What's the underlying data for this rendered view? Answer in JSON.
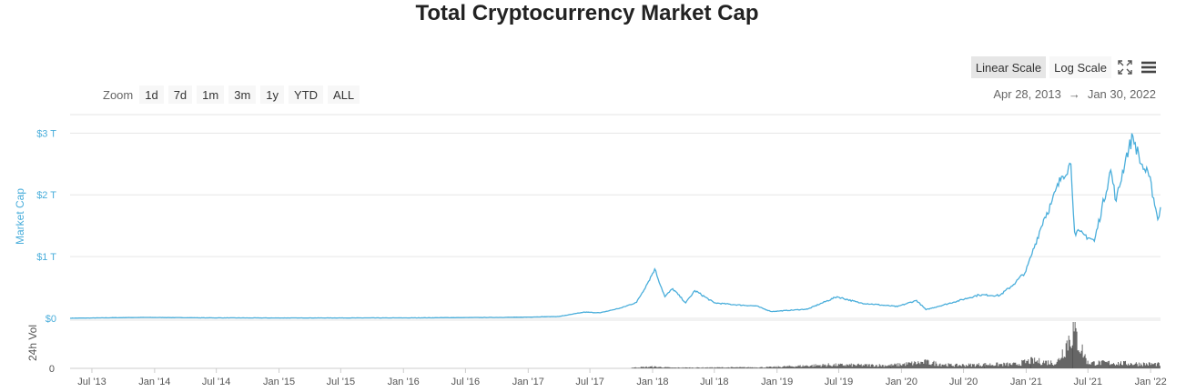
{
  "title": "Total Cryptocurrency Market Cap",
  "zoom": {
    "label": "Zoom",
    "buttons": [
      "1d",
      "7d",
      "1m",
      "3m",
      "1y",
      "YTD",
      "ALL"
    ]
  },
  "scale": {
    "linear": "Linear Scale",
    "log": "Log Scale",
    "active": "linear"
  },
  "range": {
    "from": "Apr 28, 2013",
    "arrow": "→",
    "to": "Jan 30, 2022"
  },
  "colors": {
    "line": "#4aaedb",
    "axis_label": "#4aaedb",
    "volume": "#555555",
    "grid": "#e6e6e6"
  },
  "chart_data": [
    {
      "type": "line",
      "ylabel": "Market Cap",
      "ytick_labels": [
        "$0",
        "$1 T",
        "$2 T",
        "$3 T"
      ],
      "yticks": [
        0,
        1,
        2,
        3
      ],
      "ylim": [
        0,
        3.3
      ],
      "xlim": [
        "2013-04-28",
        "2022-01-30"
      ],
      "x_tick_labels": [
        "Jul '13",
        "Jan '14",
        "Jul '14",
        "Jan '15",
        "Jul '15",
        "Jan '16",
        "Jul '16",
        "Jan '17",
        "Jul '17",
        "Jan '18",
        "Jul '18",
        "Jan '19",
        "Jul '19",
        "Jan '20",
        "Jul '20",
        "Jan '21",
        "Jul '21",
        "Jan '22"
      ],
      "x_ticks": [
        "2013-07-01",
        "2014-01-01",
        "2014-07-01",
        "2015-01-01",
        "2015-07-01",
        "2016-01-01",
        "2016-07-01",
        "2017-01-01",
        "2017-07-01",
        "2018-01-01",
        "2018-07-01",
        "2019-01-01",
        "2019-07-01",
        "2020-01-01",
        "2020-07-01",
        "2021-01-01",
        "2021-07-01",
        "2022-01-01"
      ],
      "series": [
        {
          "x": [
            "2013-04-28",
            "2013-12-01",
            "2014-06-01",
            "2015-01-01",
            "2016-01-01",
            "2016-12-01",
            "2017-04-01",
            "2017-06-15",
            "2017-08-01",
            "2017-10-01",
            "2017-11-15",
            "2017-12-20",
            "2018-01-07",
            "2018-02-06",
            "2018-03-01",
            "2018-04-08",
            "2018-05-05",
            "2018-07-01",
            "2018-09-01",
            "2018-11-01",
            "2018-12-15",
            "2019-04-01",
            "2019-06-26",
            "2019-09-01",
            "2019-12-20",
            "2020-02-14",
            "2020-03-13",
            "2020-06-01",
            "2020-08-15",
            "2020-10-15",
            "2020-11-25",
            "2020-12-31",
            "2021-01-15",
            "2021-02-21",
            "2021-03-15",
            "2021-04-15",
            "2021-05-12",
            "2021-05-23",
            "2021-06-22",
            "2021-07-20",
            "2021-09-06",
            "2021-09-22",
            "2021-10-20",
            "2021-11-10",
            "2021-12-04",
            "2021-12-27",
            "2022-01-10",
            "2022-01-22",
            "2022-01-30"
          ],
          "y": [
            0.002,
            0.015,
            0.008,
            0.006,
            0.007,
            0.017,
            0.03,
            0.1,
            0.09,
            0.17,
            0.26,
            0.6,
            0.8,
            0.35,
            0.48,
            0.25,
            0.45,
            0.25,
            0.22,
            0.2,
            0.11,
            0.15,
            0.35,
            0.25,
            0.19,
            0.29,
            0.14,
            0.26,
            0.38,
            0.37,
            0.55,
            0.76,
            1.0,
            1.6,
            1.85,
            2.3,
            2.5,
            1.4,
            1.35,
            1.25,
            2.4,
            1.9,
            2.6,
            2.95,
            2.5,
            2.3,
            1.95,
            1.6,
            1.8
          ]
        }
      ]
    },
    {
      "type": "area",
      "ylabel": "24h Vol",
      "ytick_labels": [
        "0"
      ],
      "yticks": [
        0
      ],
      "series": [
        {
          "x": [
            "2017-11-01",
            "2018-01-01",
            "2018-03-01",
            "2018-12-01",
            "2019-06-01",
            "2019-12-01",
            "2020-03-12",
            "2020-06-01",
            "2020-09-01",
            "2020-12-01",
            "2021-01-15",
            "2021-04-01",
            "2021-05-19",
            "2021-07-01",
            "2021-09-01",
            "2021-11-01",
            "2022-01-30"
          ],
          "y": [
            0.05,
            0.12,
            0.05,
            0.08,
            0.25,
            0.22,
            0.45,
            0.22,
            0.28,
            0.3,
            0.55,
            0.4,
            2.8,
            0.4,
            0.4,
            0.35,
            0.3
          ]
        }
      ]
    }
  ]
}
